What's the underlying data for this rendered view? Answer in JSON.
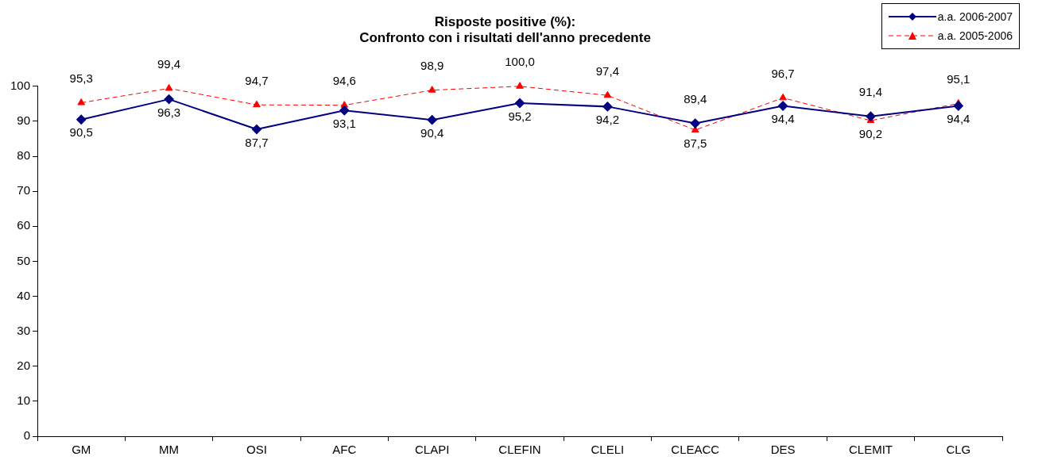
{
  "chart_data": {
    "type": "line",
    "title": "Risposte positive (%):\nConfronto con i risultati dell'anno precedente",
    "categories": [
      "GM",
      "MM",
      "OSI",
      "AFC",
      "CLAPI",
      "CLEFIN",
      "CLELI",
      "CLEACC",
      "DES",
      "CLEMIT",
      "CLG"
    ],
    "series": [
      {
        "name": "a.a. 2006-2007",
        "color": "#000080",
        "marker": "diamond",
        "line_style": "solid",
        "values": [
          90.5,
          96.3,
          87.7,
          93.1,
          90.4,
          95.2,
          94.2,
          89.4,
          94.4,
          91.4,
          94.4
        ],
        "value_labels": [
          "90,5",
          "96,3",
          "87,7",
          "93,1",
          "90,4",
          "95,2",
          "94,2",
          "89,4",
          "94,4",
          "91,4",
          "94,4"
        ]
      },
      {
        "name": "a.a. 2005-2006",
        "color": "#ff0000",
        "marker": "triangle",
        "line_style": "dashed",
        "values": [
          95.3,
          99.4,
          94.7,
          94.6,
          98.9,
          100.0,
          97.4,
          87.5,
          96.7,
          90.2,
          95.1
        ],
        "value_labels": [
          "95,3",
          "99,4",
          "94,7",
          "94,6",
          "98,9",
          "100,0",
          "97,4",
          "87,5",
          "96,7",
          "90,2",
          "95,1"
        ]
      }
    ],
    "ylim": [
      0,
      100
    ],
    "yticks": [
      0,
      10,
      20,
      30,
      40,
      50,
      60,
      70,
      80,
      90,
      100
    ],
    "grid": false,
    "legend": "top right"
  }
}
